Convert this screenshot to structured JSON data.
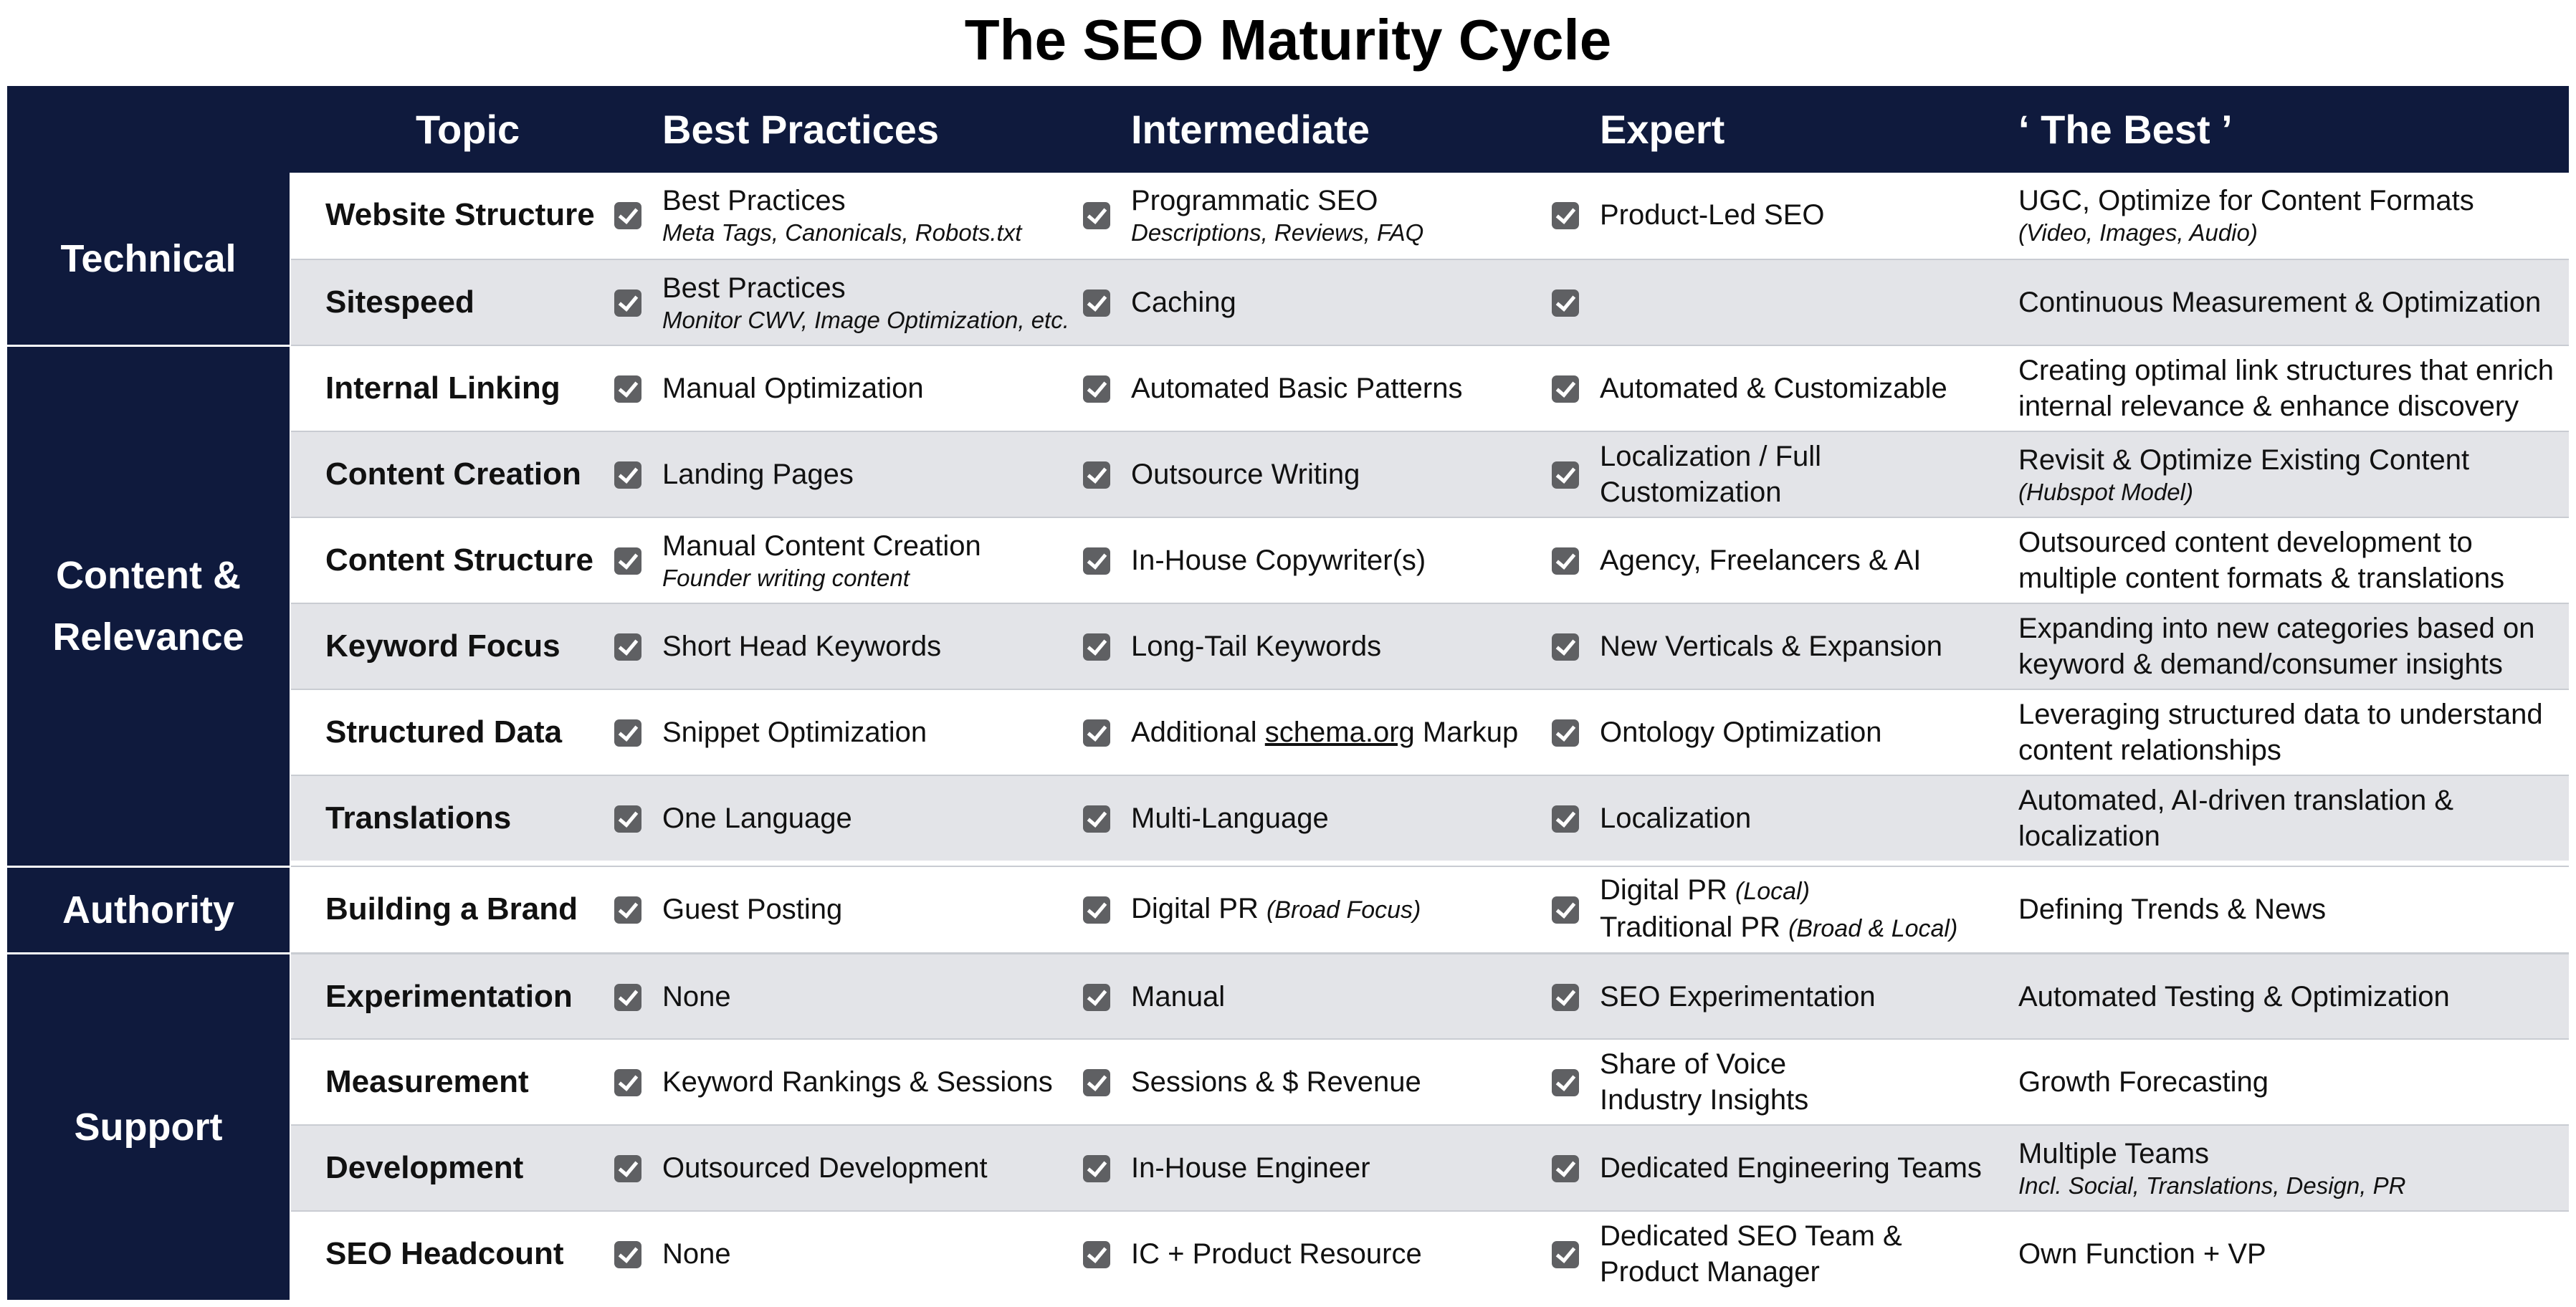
{
  "title": "The SEO Maturity Cycle",
  "header": {
    "topic": "Topic",
    "best_practices": "Best Practices",
    "intermediate": "Intermediate",
    "expert": "Expert",
    "the_best": "‘ The Best ’"
  },
  "categories": [
    "Technical",
    "Content &",
    "Relevance",
    "Authority",
    "Support"
  ],
  "rows": [
    {
      "topic": "Website Structure",
      "c1": "Best Practices",
      "c1s": "Meta Tags, Canonicals, Robots.txt",
      "c2": "Programmatic SEO",
      "c2s": "Descriptions, Reviews, FAQ",
      "c3": "Product-Led SEO",
      "c4": "UGC, Optimize for Content Formats",
      "c4s": "(Video, Images, Audio)"
    },
    {
      "topic": "Sitespeed",
      "c1": "Best Practices",
      "c1s": "Monitor CWV, Image Optimization, etc.",
      "c2": "Caching",
      "c3": "",
      "c4": "Continuous Measurement & Optimization"
    },
    {
      "topic": "Internal Linking",
      "c1": "Manual Optimization",
      "c2": "Automated Basic Patterns",
      "c3": "Automated & Customizable",
      "c4": "Creating optimal link structures that enrich internal relevance & enhance discovery"
    },
    {
      "topic": "Content Creation",
      "c1": "Landing Pages",
      "c2": "Outsource Writing",
      "c3": "Localization / Full Customization",
      "c4": "Revisit & Optimize Existing Content",
      "c4s": "(Hubspot Model)"
    },
    {
      "topic": "Content Structure",
      "c1": "Manual Content Creation",
      "c1s": "Founder writing content",
      "c2": "In-House Copywriter(s)",
      "c3": "Agency, Freelancers & AI",
      "c4": "Outsourced content development to multiple content formats & translations"
    },
    {
      "topic": "Keyword Focus",
      "c1": "Short Head Keywords",
      "c2": "Long-Tail Keywords",
      "c3": "New Verticals & Expansion",
      "c4": "Expanding into new categories based on keyword & demand/consumer insights"
    },
    {
      "topic": "Structured Data",
      "c1": "Snippet Optimization",
      "c2a": "Additional ",
      "c2u": "schema.org",
      "c2b": " Markup",
      "c3": "Ontology Optimization",
      "c4": "Leveraging structured data to understand content relationships"
    },
    {
      "topic": "Translations",
      "c1": "One Language",
      "c2": "Multi-Language",
      "c3": "Localization",
      "c4": "Automated, AI-driven translation & localization"
    },
    {
      "topic": "Building a Brand",
      "c1": "Guest Posting",
      "c2": "Digital PR",
      "c2i": "(Broad Focus)",
      "c3a": "Digital PR",
      "c3ai": "(Local)",
      "c3b": "Traditional PR",
      "c3bi": "(Broad & Local)",
      "c4": "Defining Trends & News"
    },
    {
      "topic": "Experimentation",
      "c1": "None",
      "c2": "Manual",
      "c3": "SEO Experimentation",
      "c4": "Automated Testing & Optimization"
    },
    {
      "topic": "Measurement",
      "c1": "Keyword Rankings & Sessions",
      "c2": "Sessions & $ Revenue",
      "c3a": "Share of Voice",
      "c3b": "Industry Insights",
      "c4": "Growth Forecasting"
    },
    {
      "topic": "Development",
      "c1": "Outsourced Development",
      "c2": "In-House Engineer",
      "c3": "Dedicated Engineering Teams",
      "c4": "Multiple Teams",
      "c4s": "Incl. Social, Translations, Design, PR"
    },
    {
      "topic": "SEO Headcount",
      "c1": "None",
      "c2": "IC + Product Resource",
      "c3": "Dedicated SEO Team & Product Manager",
      "c4": "Own Function + VP"
    }
  ]
}
